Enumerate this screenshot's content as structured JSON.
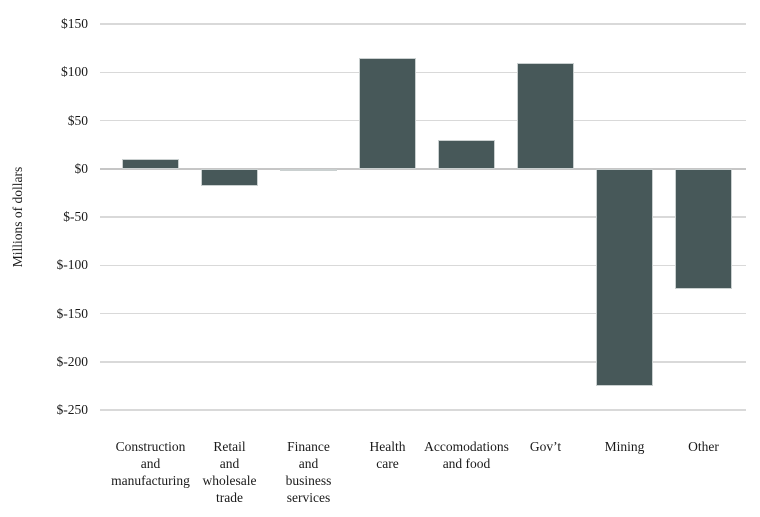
{
  "chart_data": {
    "type": "bar",
    "title": "",
    "xlabel": "",
    "ylabel": "Millions of dollars",
    "categories": [
      "Construction and manufacturing",
      "Retail and wholesale trade",
      "Finance and business services",
      "Health care",
      "Accomodations and food",
      "Gov’t",
      "Mining",
      "Other"
    ],
    "category_label_lines": [
      [
        "Construction",
        "and",
        "manufacturing"
      ],
      [
        "Retail",
        "and",
        "wholesale",
        "trade"
      ],
      [
        "Finance",
        "and",
        "business",
        "services"
      ],
      [
        "Health",
        "care"
      ],
      [
        "Accomodations",
        "and food"
      ],
      [
        "Gov’t"
      ],
      [
        "Mining"
      ],
      [
        "Other"
      ]
    ],
    "values": [
      10,
      -18,
      -2,
      115,
      30,
      110,
      -225,
      -125
    ],
    "ylim": [
      -250,
      150
    ],
    "ytick_values": [
      150,
      100,
      50,
      0,
      -50,
      -100,
      -150,
      -200,
      -250
    ],
    "ytick_labels": [
      "$150",
      "$100",
      "$50",
      "$0",
      "$-50",
      "$-100",
      "$-150",
      "$-200",
      "$-250"
    ],
    "grid": true,
    "legend": false,
    "bar_color": "#475859",
    "bar_border_color": "#cad0d0",
    "gridline_color": "#d9d9d9",
    "zero_line_color": "#c6c6c6",
    "text_color": "#1a1a1a",
    "background_color": "#ffffff"
  }
}
